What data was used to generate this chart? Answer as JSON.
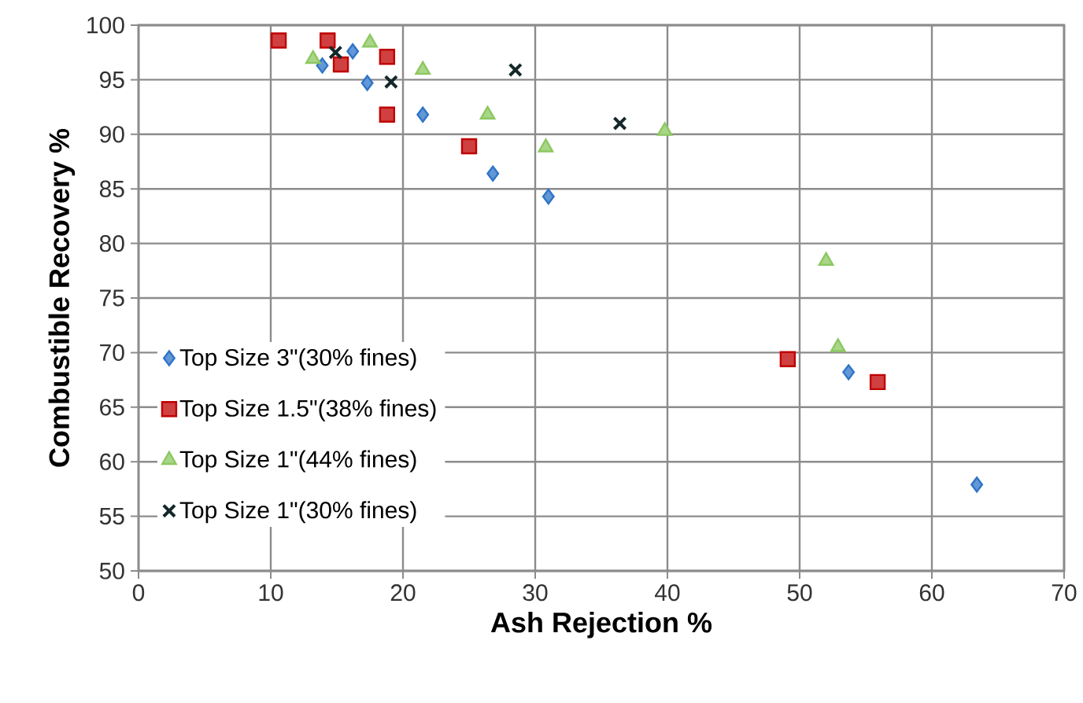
{
  "chart_data": {
    "type": "scatter",
    "xlabel": "Ash Rejection %",
    "ylabel": "Combustible Recovery %",
    "xlim": [
      0,
      70
    ],
    "ylim": [
      50,
      100
    ],
    "xticks": [
      0,
      10,
      20,
      30,
      40,
      50,
      60,
      70
    ],
    "yticks": [
      50,
      55,
      60,
      65,
      70,
      75,
      80,
      85,
      90,
      95,
      100
    ],
    "grid": true,
    "legend": "bottom left",
    "series": [
      {
        "name": "Top Size 3\"(30% fines)",
        "color": "#2f74c8",
        "marker": "diamond",
        "x": [
          13.9,
          16.2,
          17.3,
          21.5,
          26.8,
          31.0,
          53.7,
          63.4
        ],
        "values": [
          96.3,
          97.6,
          94.7,
          91.8,
          86.4,
          84.3,
          68.2,
          57.9
        ]
      },
      {
        "name": "Top Size 1.5\"(38% fines)",
        "color": "#c00000",
        "marker": "square",
        "x": [
          10.6,
          14.3,
          15.3,
          18.8,
          18.8,
          25.0,
          49.1,
          55.9
        ],
        "values": [
          98.6,
          98.6,
          96.4,
          97.1,
          91.8,
          88.9,
          69.4,
          67.3
        ]
      },
      {
        "name": "Top Size 1\"(44% fines)",
        "color": "#8cc860",
        "marker": "triangle",
        "x": [
          13.2,
          17.5,
          21.5,
          26.4,
          30.8,
          39.8,
          52.0,
          52.9
        ],
        "values": [
          96.9,
          98.4,
          95.9,
          91.8,
          88.8,
          90.3,
          78.4,
          70.5
        ]
      },
      {
        "name": "Top Size 1\"(30% fines)",
        "color": "#14282a",
        "marker": "cross",
        "x": [
          14.9,
          19.1,
          28.5,
          36.4
        ],
        "values": [
          97.5,
          94.8,
          95.9,
          91.0
        ]
      }
    ]
  }
}
